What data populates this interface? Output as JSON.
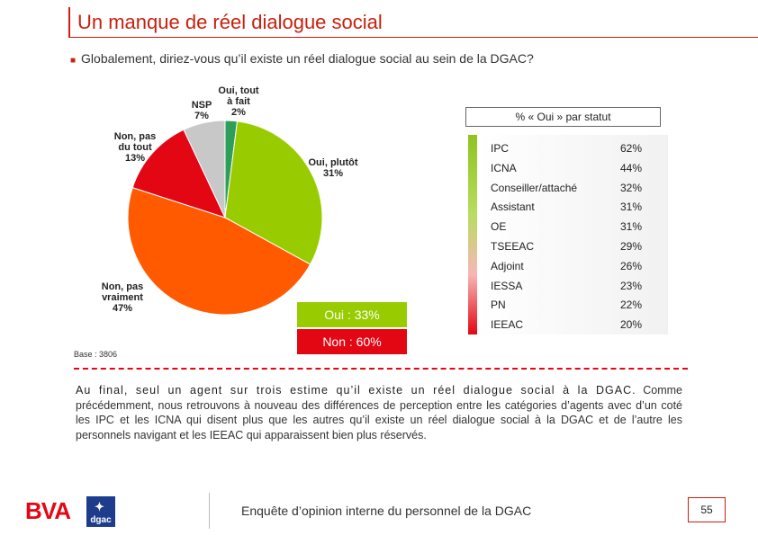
{
  "header": {
    "title": "Un manque de réel dialogue social"
  },
  "question": "Globalement, diriez-vous qu’il existe un réel dialogue social au sein de la DGAC?",
  "chart_data": [
    {
      "type": "pie",
      "title": "",
      "slices": [
        {
          "label": "Oui, tout\nà fait",
          "value": 2,
          "color": "#2e9e5b"
        },
        {
          "label": "Oui, plutôt",
          "value": 31,
          "color": "#99cc00"
        },
        {
          "label": "Non, pas\nvraiment",
          "value": 47,
          "color": "#ff5a00"
        },
        {
          "label": "Non, pas\ndu tout",
          "value": 13,
          "color": "#e30613"
        },
        {
          "label": "NSP",
          "value": 7,
          "color": "#c8c8c8"
        }
      ],
      "value_suffix": "%",
      "summary": [
        {
          "label": "Oui : 33%",
          "color": "#99cc00"
        },
        {
          "label": "Non : 60%",
          "color": "#e30613"
        }
      ]
    },
    {
      "type": "table",
      "title": "% « Oui » par statut",
      "categories": [
        "IPC",
        "ICNA",
        "Conseiller/attaché",
        "Assistant",
        "OE",
        "TSEEAC",
        "Adjoint",
        "IESSA",
        "PN",
        "IEEAC"
      ],
      "values": [
        62,
        44,
        32,
        31,
        31,
        29,
        26,
        23,
        22,
        20
      ],
      "value_suffix": "%"
    }
  ],
  "base": "Base : 3806",
  "conclusion": {
    "lead": "Au final, seul un agent sur trois estime qu’il existe un réel dialogue social à la DGAC.",
    "body": " Comme précédemment, nous retrouvons à nouveau des différences de perception entre les catégories d’agents avec d’un coté les IPC et les ICNA qui disent plus que les autres qu’il existe un réel dialogue social à la DGAC et de l’autre les personnels navigant et les IEEAC qui apparaissent bien plus réservés."
  },
  "footer": {
    "logo_bva": "BVA",
    "logo_dgac": "dgac",
    "text": "Enquête d’opinion interne du personnel de la DGAC",
    "page": "55"
  },
  "colors": {
    "accent": "#c8200e",
    "oui": "#99cc00",
    "non": "#e30613"
  }
}
